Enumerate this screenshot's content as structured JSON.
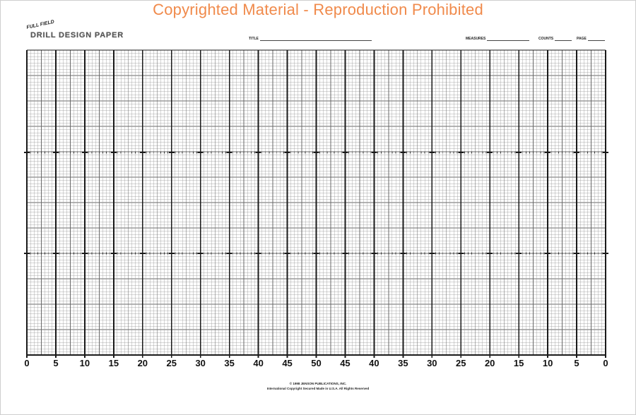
{
  "watermark": "Copyrighted Material - Reproduction Prohibited",
  "logo": {
    "small_text": "FULL FIELD",
    "big_text": "DRILL DESIGN PAPER"
  },
  "header_fields": {
    "title_label": "TITLE",
    "measures_label": "MEASURES",
    "counts_label": "COUNTS",
    "page_label": "PAGE"
  },
  "yard_labels": [
    "0",
    "5",
    "10",
    "15",
    "20",
    "25",
    "30",
    "35",
    "40",
    "45",
    "50",
    "45",
    "40",
    "35",
    "30",
    "25",
    "20",
    "15",
    "10",
    "5",
    "0"
  ],
  "footer": {
    "line1": "© 1998 JENSON PUBLICATIONS, INC.",
    "line2": "International Copyright Secured   Made in U.S.A.   All Rights Reserved"
  },
  "colors": {
    "watermark": "#f08a4b",
    "fine_grid": "#9a9a9a",
    "mid_grid": "#6a6a6a",
    "yard_line": "#1a1a1a"
  }
}
